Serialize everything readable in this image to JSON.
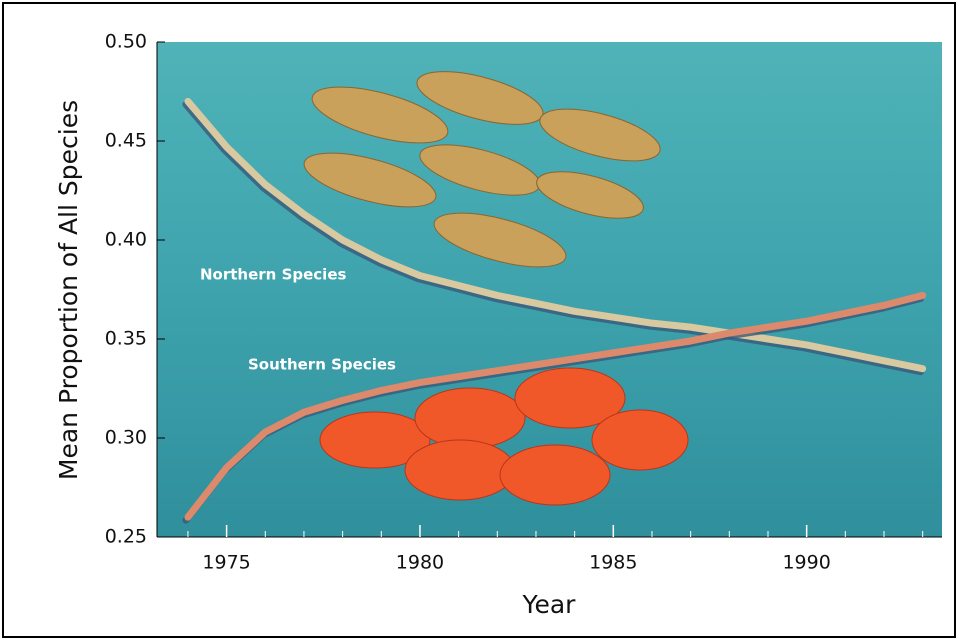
{
  "chart_data": {
    "type": "line",
    "xlabel": "Year",
    "ylabel": "Mean Proportion of All Species",
    "x": [
      1974,
      1975,
      1976,
      1977,
      1978,
      1979,
      1980,
      1981,
      1982,
      1983,
      1984,
      1985,
      1986,
      1987,
      1988,
      1989,
      1990,
      1991,
      1992,
      1993
    ],
    "series": [
      {
        "name": "Northern Species",
        "color": "#d8c9a0",
        "values": [
          0.47,
          0.447,
          0.428,
          0.413,
          0.4,
          0.39,
          0.382,
          0.377,
          0.372,
          0.368,
          0.364,
          0.361,
          0.358,
          0.356,
          0.353,
          0.35,
          0.347,
          0.343,
          0.339,
          0.335
        ]
      },
      {
        "name": "Southern Species",
        "color": "#dd8a6c",
        "values": [
          0.26,
          0.285,
          0.303,
          0.313,
          0.319,
          0.324,
          0.328,
          0.331,
          0.334,
          0.337,
          0.34,
          0.343,
          0.346,
          0.349,
          0.353,
          0.356,
          0.359,
          0.363,
          0.367,
          0.372
        ]
      }
    ],
    "xlim": [
      1973.2,
      1993.5
    ],
    "ylim": [
      0.25,
      0.5
    ],
    "xticks": [
      1975,
      1980,
      1985,
      1990
    ],
    "x_minor_ticks": [
      1974,
      1976,
      1977,
      1978,
      1979,
      1981,
      1982,
      1983,
      1984,
      1986,
      1987,
      1988,
      1989,
      1991,
      1992,
      1993
    ],
    "yticks": [
      0.25,
      {
        "value": 0.3,
        "label": "0.30"
      },
      0.35,
      {
        "value": 0.4,
        "label": "0.40"
      },
      0.45,
      {
        "value": 0.5,
        "label": "0.50"
      }
    ]
  }
}
